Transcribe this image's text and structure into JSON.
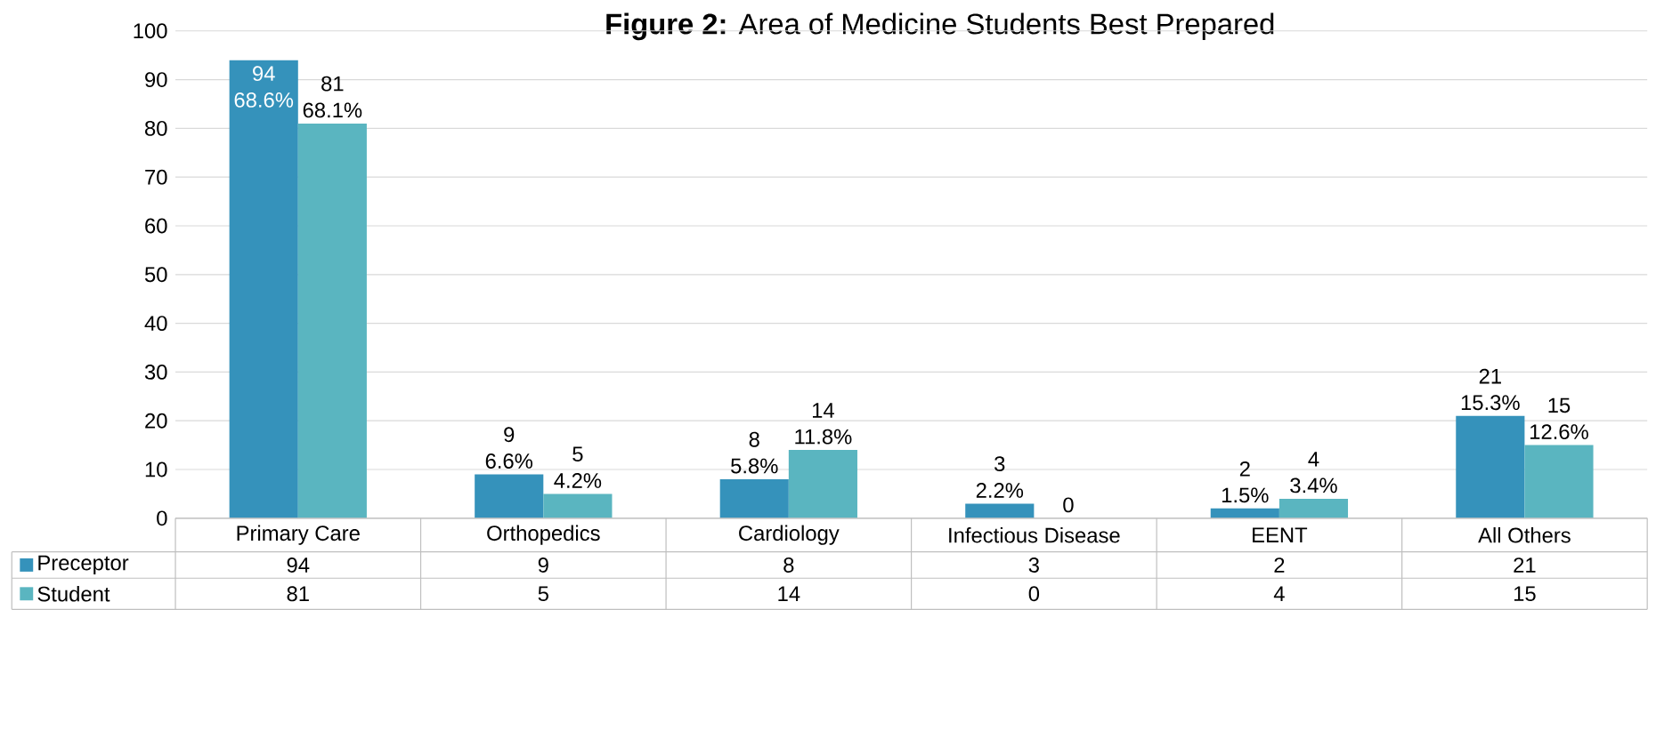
{
  "chart_data": {
    "type": "bar",
    "title": "**Figure 2:** Area of Medicine Students Best Prepared",
    "categories": [
      "Primary Care",
      "Orthopedics",
      "Cardiology",
      "Infectious Disease",
      "EENT",
      "All Others"
    ],
    "series": [
      {
        "name": "Preceptor",
        "color": "#3592bb",
        "values": [
          94,
          9,
          8,
          3,
          2,
          21
        ],
        "value_labels": [
          "94",
          "9",
          "8",
          "3",
          "2",
          "21"
        ]
      },
      {
        "name": "Student",
        "color": "#5ab5c0",
        "values": [
          81,
          5,
          14,
          0,
          4,
          15
        ],
        "value_labels": [
          "81",
          "5",
          "14",
          "0",
          "4",
          "15"
        ]
      }
    ],
    "annotations": [
      {
        "text": "68.6%",
        "x": "Primary Care",
        "y": 94
      },
      {
        "text": "68.1%",
        "x": "Primary Care",
        "y": 81
      },
      {
        "text": "6.6%",
        "x": "Orthopedics",
        "y": 9
      },
      {
        "text": "4.2%",
        "x": "Orthopedics",
        "y": 5
      },
      {
        "text": "5.8%",
        "x": "Cardiology",
        "y": 8
      },
      {
        "text": "11.8%",
        "x": "Cardiology",
        "y": 14
      },
      {
        "text": "2.2%",
        "x": "Infectious Disease",
        "y": 3
      },
      {
        "text": "1.5%",
        "x": "EENT",
        "y": 2
      },
      {
        "text": "3.4%",
        "x": "EENT",
        "y": 4
      },
      {
        "text": "15.3%",
        "x": "All Others",
        "y": 21
      },
      {
        "text": "12.6%",
        "x": "All Others",
        "y": 15
      }
    ],
    "ylim": [
      0,
      100
    ],
    "yticks": [
      0,
      10,
      20,
      30,
      40,
      50,
      60,
      70,
      80,
      90,
      100
    ],
    "grid": "y",
    "legend": "bottom",
    "data_labels": true
  }
}
